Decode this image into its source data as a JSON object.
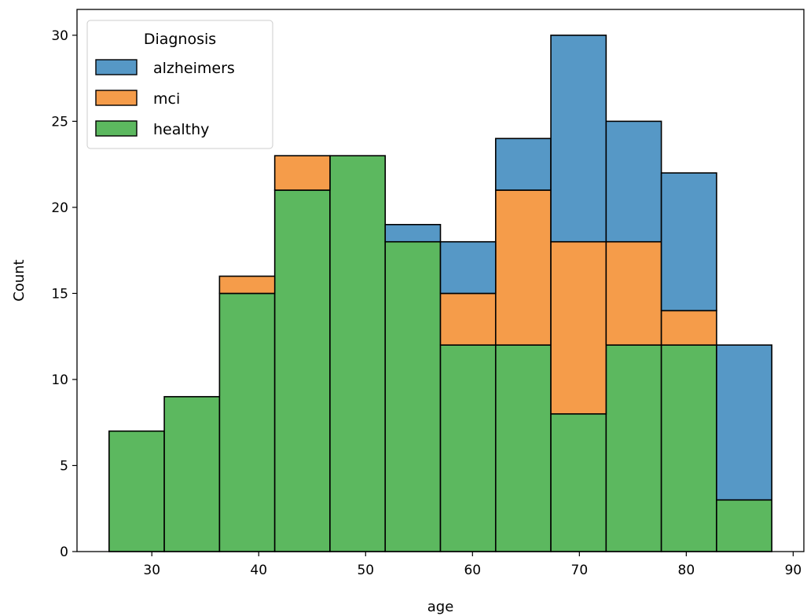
{
  "chart_data": {
    "type": "bar",
    "stacked": true,
    "histogram": true,
    "bin_edges": [
      26.0,
      31.1667,
      36.3333,
      41.5,
      46.6667,
      51.8333,
      57.0,
      62.1667,
      67.3333,
      72.5,
      77.6667,
      82.8333,
      88.0
    ],
    "series": [
      {
        "name": "healthy",
        "color": "#5cb85f",
        "values": [
          7,
          9,
          15,
          21,
          23,
          18,
          12,
          12,
          8,
          12,
          12,
          3
        ]
      },
      {
        "name": "mci",
        "color": "#f59c4a",
        "values": [
          0,
          0,
          1,
          2,
          0,
          0,
          3,
          9,
          10,
          6,
          2,
          0
        ]
      },
      {
        "name": "alzheimers",
        "color": "#5698c6",
        "values": [
          0,
          0,
          0,
          0,
          0,
          1,
          3,
          3,
          12,
          7,
          8,
          9
        ]
      }
    ],
    "xlabel": "age",
    "ylabel": "Count",
    "xlim": [
      23,
      91
    ],
    "ylim": [
      0,
      31.5
    ],
    "xticks": [
      30,
      40,
      50,
      60,
      70,
      80,
      90
    ],
    "yticks": [
      0,
      5,
      10,
      15,
      20,
      25,
      30
    ],
    "legend": {
      "title": "Diagnosis",
      "position": "top-left",
      "entries": [
        {
          "label": "alzheimers",
          "color": "#5698c6"
        },
        {
          "label": "mci",
          "color": "#f59c4a"
        },
        {
          "label": "healthy",
          "color": "#5cb85f"
        }
      ]
    },
    "grid": false
  }
}
